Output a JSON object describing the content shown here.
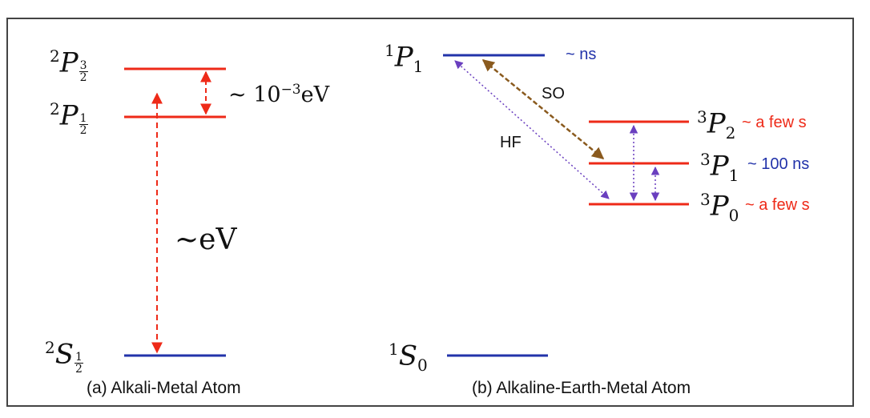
{
  "panel_a": {
    "caption": "(a) Alkali-Metal Atom",
    "levels": [
      {
        "element": "P",
        "mult": "2",
        "j_num": "3",
        "j_den": "2"
      },
      {
        "element": "P",
        "mult": "2",
        "j_num": "1",
        "j_den": "2"
      },
      {
        "element": "S",
        "mult": "2",
        "j_num": "1",
        "j_den": "2"
      }
    ],
    "splitting": {
      "prefix": "~ 10",
      "exp": "−3",
      "unit": "eV"
    },
    "transition": "~eV"
  },
  "panel_b": {
    "caption": "(b) Alkaline-Earth-Metal Atom",
    "levels": [
      {
        "element": "P",
        "mult": "1",
        "j": "1",
        "lifetime": "~ ns"
      },
      {
        "element": "P",
        "mult": "3",
        "j": "2",
        "lifetime": "~ a few s"
      },
      {
        "element": "P",
        "mult": "3",
        "j": "1",
        "lifetime": "~ 100 ns"
      },
      {
        "element": "P",
        "mult": "3",
        "j": "0",
        "lifetime": "~ a few s"
      },
      {
        "element": "S",
        "mult": "1",
        "j": "0",
        "lifetime": ""
      }
    ],
    "so_label": "SO",
    "hf_label": "HF"
  },
  "colors": {
    "red": "#ee2a18",
    "blue": "#2233aa",
    "brown": "#8a5a1e",
    "purple": "#6a3fbf"
  }
}
